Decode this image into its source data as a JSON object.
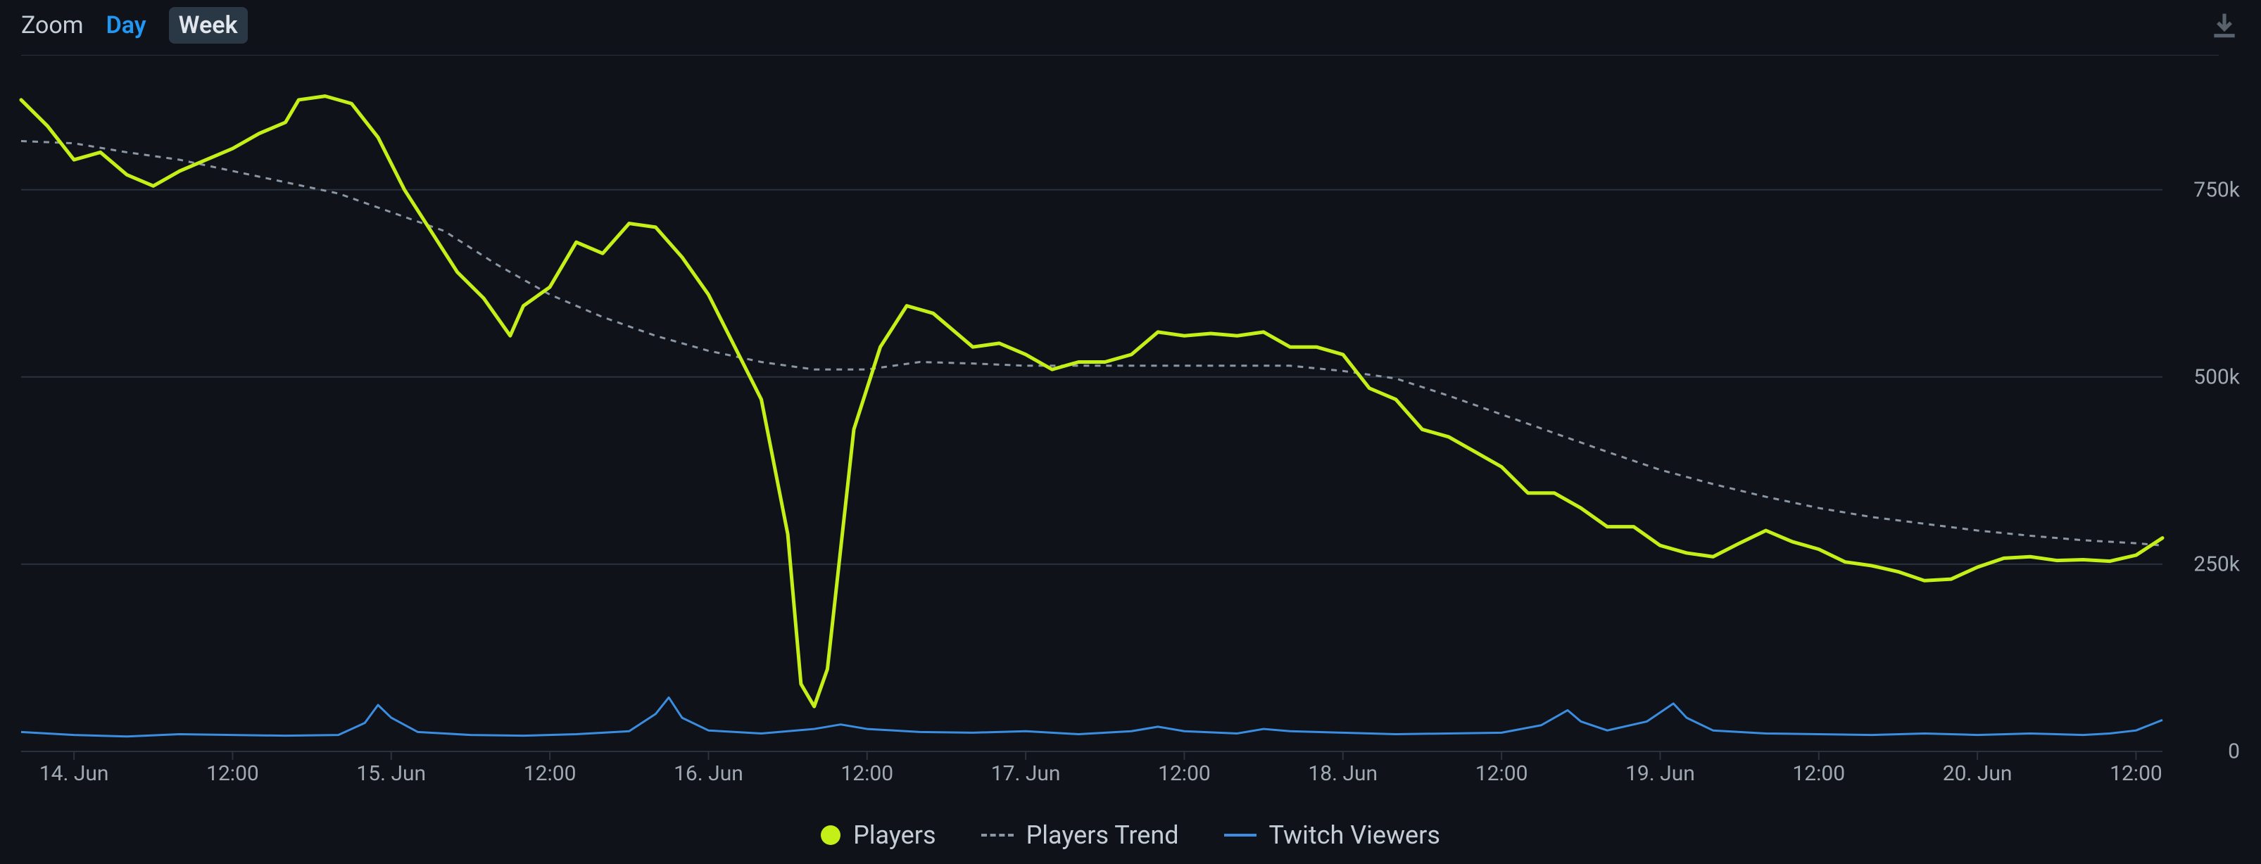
{
  "toolbar": {
    "zoom_label": "Zoom",
    "day_label": "Day",
    "week_label": "Week",
    "selected": "week"
  },
  "chart": {
    "type": "line",
    "background_color": "#0f1319",
    "grid_color": "#2a333d",
    "axis_label_color": "#a0a8b0",
    "axis_label_fontsize": 30,
    "legend_fontsize": 36,
    "y": {
      "min": 0,
      "max": 900000,
      "ticks": [
        {
          "v": 0,
          "label": "0"
        },
        {
          "v": 250000,
          "label": "250k"
        },
        {
          "v": 500000,
          "label": "500k"
        },
        {
          "v": 750000,
          "label": "750k"
        }
      ]
    },
    "x": {
      "min": 0,
      "max": 162,
      "ticks": [
        {
          "v": 4,
          "label": "14. Jun"
        },
        {
          "v": 16,
          "label": "12:00"
        },
        {
          "v": 28,
          "label": "15. Jun"
        },
        {
          "v": 40,
          "label": "12:00"
        },
        {
          "v": 52,
          "label": "16. Jun"
        },
        {
          "v": 64,
          "label": "12:00"
        },
        {
          "v": 76,
          "label": "17. Jun"
        },
        {
          "v": 88,
          "label": "12:00"
        },
        {
          "v": 100,
          "label": "18. Jun"
        },
        {
          "v": 112,
          "label": "12:00"
        },
        {
          "v": 124,
          "label": "19. Jun"
        },
        {
          "v": 136,
          "label": "12:00"
        },
        {
          "v": 148,
          "label": "20. Jun"
        },
        {
          "v": 160,
          "label": "12:00"
        }
      ]
    },
    "series": {
      "players": {
        "label": "Players",
        "color": "#c4ef17",
        "line_width": 5,
        "legend_marker": "dot",
        "data": [
          [
            0,
            870000
          ],
          [
            2,
            835000
          ],
          [
            4,
            790000
          ],
          [
            6,
            800000
          ],
          [
            8,
            770000
          ],
          [
            10,
            755000
          ],
          [
            12,
            775000
          ],
          [
            14,
            790000
          ],
          [
            16,
            805000
          ],
          [
            18,
            825000
          ],
          [
            20,
            840000
          ],
          [
            21,
            870000
          ],
          [
            23,
            875000
          ],
          [
            25,
            865000
          ],
          [
            27,
            820000
          ],
          [
            29,
            750000
          ],
          [
            31,
            695000
          ],
          [
            33,
            640000
          ],
          [
            35,
            605000
          ],
          [
            37,
            555000
          ],
          [
            38,
            595000
          ],
          [
            40,
            620000
          ],
          [
            42,
            680000
          ],
          [
            44,
            665000
          ],
          [
            46,
            705000
          ],
          [
            48,
            700000
          ],
          [
            50,
            660000
          ],
          [
            52,
            610000
          ],
          [
            54,
            540000
          ],
          [
            56,
            470000
          ],
          [
            58,
            290000
          ],
          [
            59,
            90000
          ],
          [
            60,
            60000
          ],
          [
            61,
            110000
          ],
          [
            62,
            270000
          ],
          [
            63,
            430000
          ],
          [
            65,
            540000
          ],
          [
            67,
            595000
          ],
          [
            69,
            585000
          ],
          [
            72,
            540000
          ],
          [
            74,
            545000
          ],
          [
            76,
            530000
          ],
          [
            78,
            510000
          ],
          [
            80,
            520000
          ],
          [
            82,
            520000
          ],
          [
            84,
            530000
          ],
          [
            86,
            560000
          ],
          [
            88,
            555000
          ],
          [
            90,
            558000
          ],
          [
            92,
            555000
          ],
          [
            94,
            560000
          ],
          [
            96,
            540000
          ],
          [
            98,
            540000
          ],
          [
            100,
            530000
          ],
          [
            102,
            485000
          ],
          [
            104,
            470000
          ],
          [
            106,
            430000
          ],
          [
            108,
            420000
          ],
          [
            110,
            400000
          ],
          [
            112,
            380000
          ],
          [
            114,
            345000
          ],
          [
            116,
            345000
          ],
          [
            118,
            325000
          ],
          [
            120,
            300000
          ],
          [
            122,
            300000
          ],
          [
            124,
            275000
          ],
          [
            126,
            265000
          ],
          [
            128,
            260000
          ],
          [
            130,
            278000
          ],
          [
            132,
            295000
          ],
          [
            134,
            280000
          ],
          [
            136,
            270000
          ],
          [
            138,
            253000
          ],
          [
            140,
            248000
          ],
          [
            142,
            240000
          ],
          [
            144,
            228000
          ],
          [
            146,
            230000
          ],
          [
            148,
            246000
          ],
          [
            150,
            258000
          ],
          [
            152,
            260000
          ],
          [
            154,
            255000
          ],
          [
            156,
            256000
          ],
          [
            158,
            254000
          ],
          [
            160,
            262000
          ],
          [
            162,
            285000
          ]
        ]
      },
      "trend": {
        "label": "Players Trend",
        "color": "#8a96a3",
        "line_width": 3,
        "dash": "8,8",
        "legend_marker": "dash",
        "data": [
          [
            0,
            815000
          ],
          [
            4,
            812000
          ],
          [
            8,
            800000
          ],
          [
            12,
            790000
          ],
          [
            16,
            775000
          ],
          [
            20,
            760000
          ],
          [
            24,
            745000
          ],
          [
            28,
            720000
          ],
          [
            32,
            695000
          ],
          [
            36,
            650000
          ],
          [
            40,
            610000
          ],
          [
            44,
            580000
          ],
          [
            48,
            555000
          ],
          [
            52,
            535000
          ],
          [
            56,
            520000
          ],
          [
            60,
            510000
          ],
          [
            64,
            510000
          ],
          [
            68,
            520000
          ],
          [
            72,
            518000
          ],
          [
            76,
            515000
          ],
          [
            80,
            515000
          ],
          [
            84,
            515000
          ],
          [
            88,
            515000
          ],
          [
            92,
            515000
          ],
          [
            96,
            515000
          ],
          [
            100,
            508000
          ],
          [
            104,
            498000
          ],
          [
            108,
            475000
          ],
          [
            112,
            450000
          ],
          [
            116,
            425000
          ],
          [
            120,
            400000
          ],
          [
            124,
            376000
          ],
          [
            128,
            357000
          ],
          [
            132,
            340000
          ],
          [
            136,
            325000
          ],
          [
            140,
            313000
          ],
          [
            144,
            304000
          ],
          [
            148,
            295000
          ],
          [
            152,
            288000
          ],
          [
            156,
            282000
          ],
          [
            160,
            278000
          ],
          [
            162,
            275000
          ]
        ]
      },
      "twitch": {
        "label": "Twitch Viewers",
        "color": "#3a8de0",
        "line_width": 3,
        "legend_marker": "line",
        "data": [
          [
            0,
            26000
          ],
          [
            4,
            22000
          ],
          [
            8,
            20000
          ],
          [
            12,
            23000
          ],
          [
            16,
            22000
          ],
          [
            20,
            21000
          ],
          [
            24,
            22000
          ],
          [
            26,
            38000
          ],
          [
            27,
            62000
          ],
          [
            28,
            45000
          ],
          [
            30,
            26000
          ],
          [
            34,
            22000
          ],
          [
            38,
            21000
          ],
          [
            42,
            23000
          ],
          [
            46,
            27000
          ],
          [
            48,
            50000
          ],
          [
            49,
            72000
          ],
          [
            50,
            45000
          ],
          [
            52,
            28000
          ],
          [
            56,
            24000
          ],
          [
            60,
            30000
          ],
          [
            62,
            36000
          ],
          [
            64,
            30000
          ],
          [
            68,
            26000
          ],
          [
            72,
            25000
          ],
          [
            76,
            27000
          ],
          [
            80,
            23000
          ],
          [
            84,
            27000
          ],
          [
            86,
            33000
          ],
          [
            88,
            27000
          ],
          [
            92,
            24000
          ],
          [
            94,
            30000
          ],
          [
            96,
            27000
          ],
          [
            100,
            25000
          ],
          [
            104,
            23000
          ],
          [
            108,
            24000
          ],
          [
            112,
            25000
          ],
          [
            115,
            35000
          ],
          [
            117,
            55000
          ],
          [
            118,
            40000
          ],
          [
            120,
            28000
          ],
          [
            123,
            40000
          ],
          [
            125,
            64000
          ],
          [
            126,
            45000
          ],
          [
            128,
            28000
          ],
          [
            132,
            24000
          ],
          [
            136,
            23000
          ],
          [
            140,
            22000
          ],
          [
            144,
            24000
          ],
          [
            148,
            22000
          ],
          [
            152,
            24000
          ],
          [
            156,
            22000
          ],
          [
            158,
            24000
          ],
          [
            160,
            28000
          ],
          [
            162,
            42000
          ]
        ]
      }
    }
  }
}
